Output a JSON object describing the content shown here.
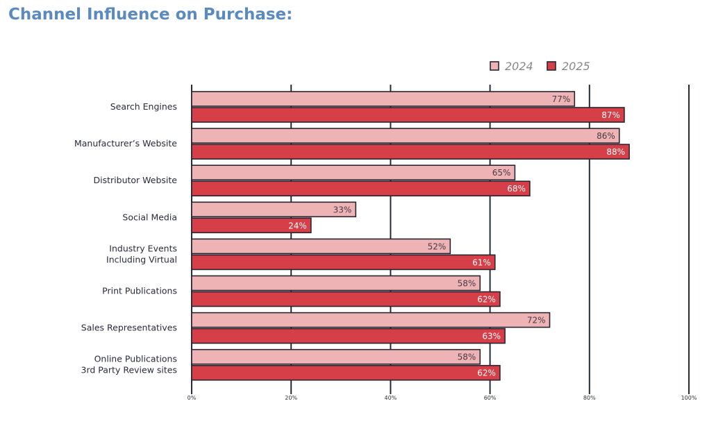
{
  "chart_data": {
    "type": "bar",
    "orientation": "horizontal",
    "title": "Channel Influence on Purchase:",
    "categories": [
      [
        "Search Engines"
      ],
      [
        "Manufacturer’s Website"
      ],
      [
        "Distributor Website"
      ],
      [
        "Social Media"
      ],
      [
        "Industry Events",
        "Including Virtual"
      ],
      [
        "Print Publications"
      ],
      [
        "Sales Representatives"
      ],
      [
        "Online Publications",
        "3rd Party Review sites"
      ]
    ],
    "series": [
      {
        "name": "2024",
        "color": "#edb3b5",
        "label_color": "#4a3a44",
        "values": [
          77,
          86,
          65,
          33,
          52,
          58,
          72,
          58
        ]
      },
      {
        "name": "2025",
        "color": "#d63e48",
        "label_color": "#ffffff",
        "values": [
          87,
          88,
          68,
          24,
          61,
          62,
          63,
          62
        ]
      }
    ],
    "xlim": [
      0,
      100
    ],
    "xticks": [
      0,
      20,
      40,
      60,
      80,
      100
    ],
    "xtick_labels": [
      "0%",
      "20%",
      "40%",
      "60%",
      "80%",
      "100%"
    ],
    "grid": true,
    "legend": "top-right",
    "value_suffix": "%"
  }
}
